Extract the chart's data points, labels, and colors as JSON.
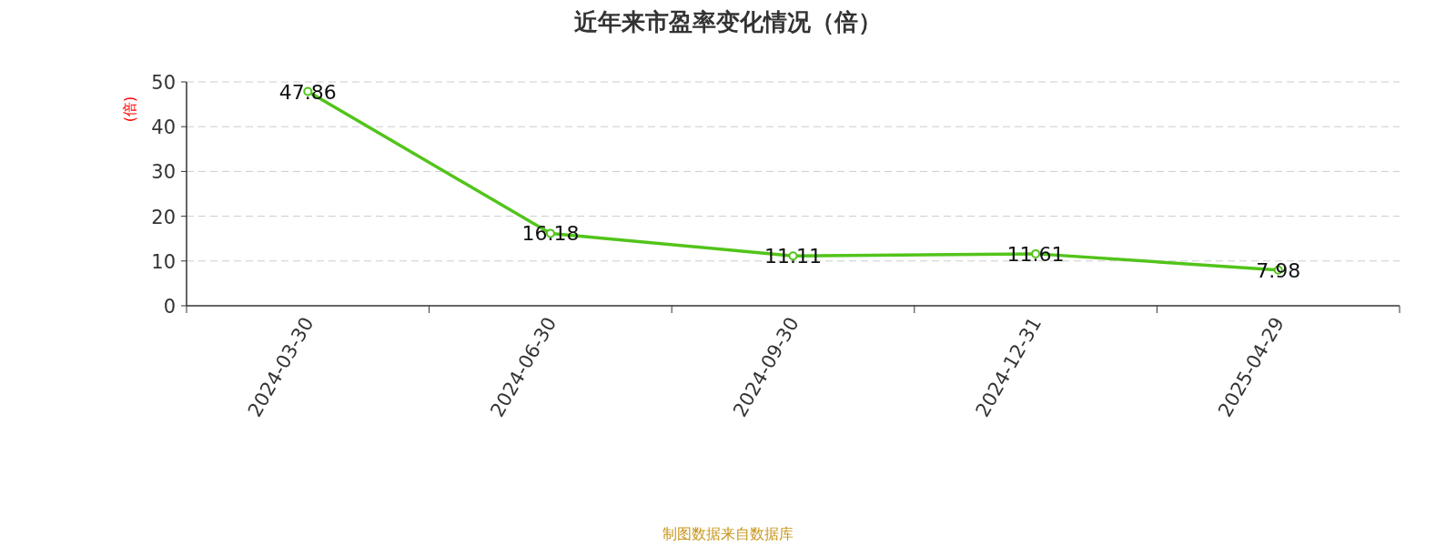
{
  "chart_data": {
    "type": "line",
    "title": "近年来市盈率变化情况（倍）",
    "ylabel": "(倍)",
    "categories": [
      "2024-03-30",
      "2024-06-30",
      "2024-09-30",
      "2024-12-31",
      "2025-04-29"
    ],
    "values": [
      47.86,
      16.18,
      11.11,
      11.61,
      7.98
    ],
    "color": "#52c41a",
    "ylim": [
      0,
      50
    ],
    "yticks": [
      0,
      10,
      20,
      30,
      40,
      50
    ],
    "grid": "y",
    "data_labels": true,
    "marker": "circle",
    "annotations": [
      "制图数据来自数据库"
    ]
  }
}
